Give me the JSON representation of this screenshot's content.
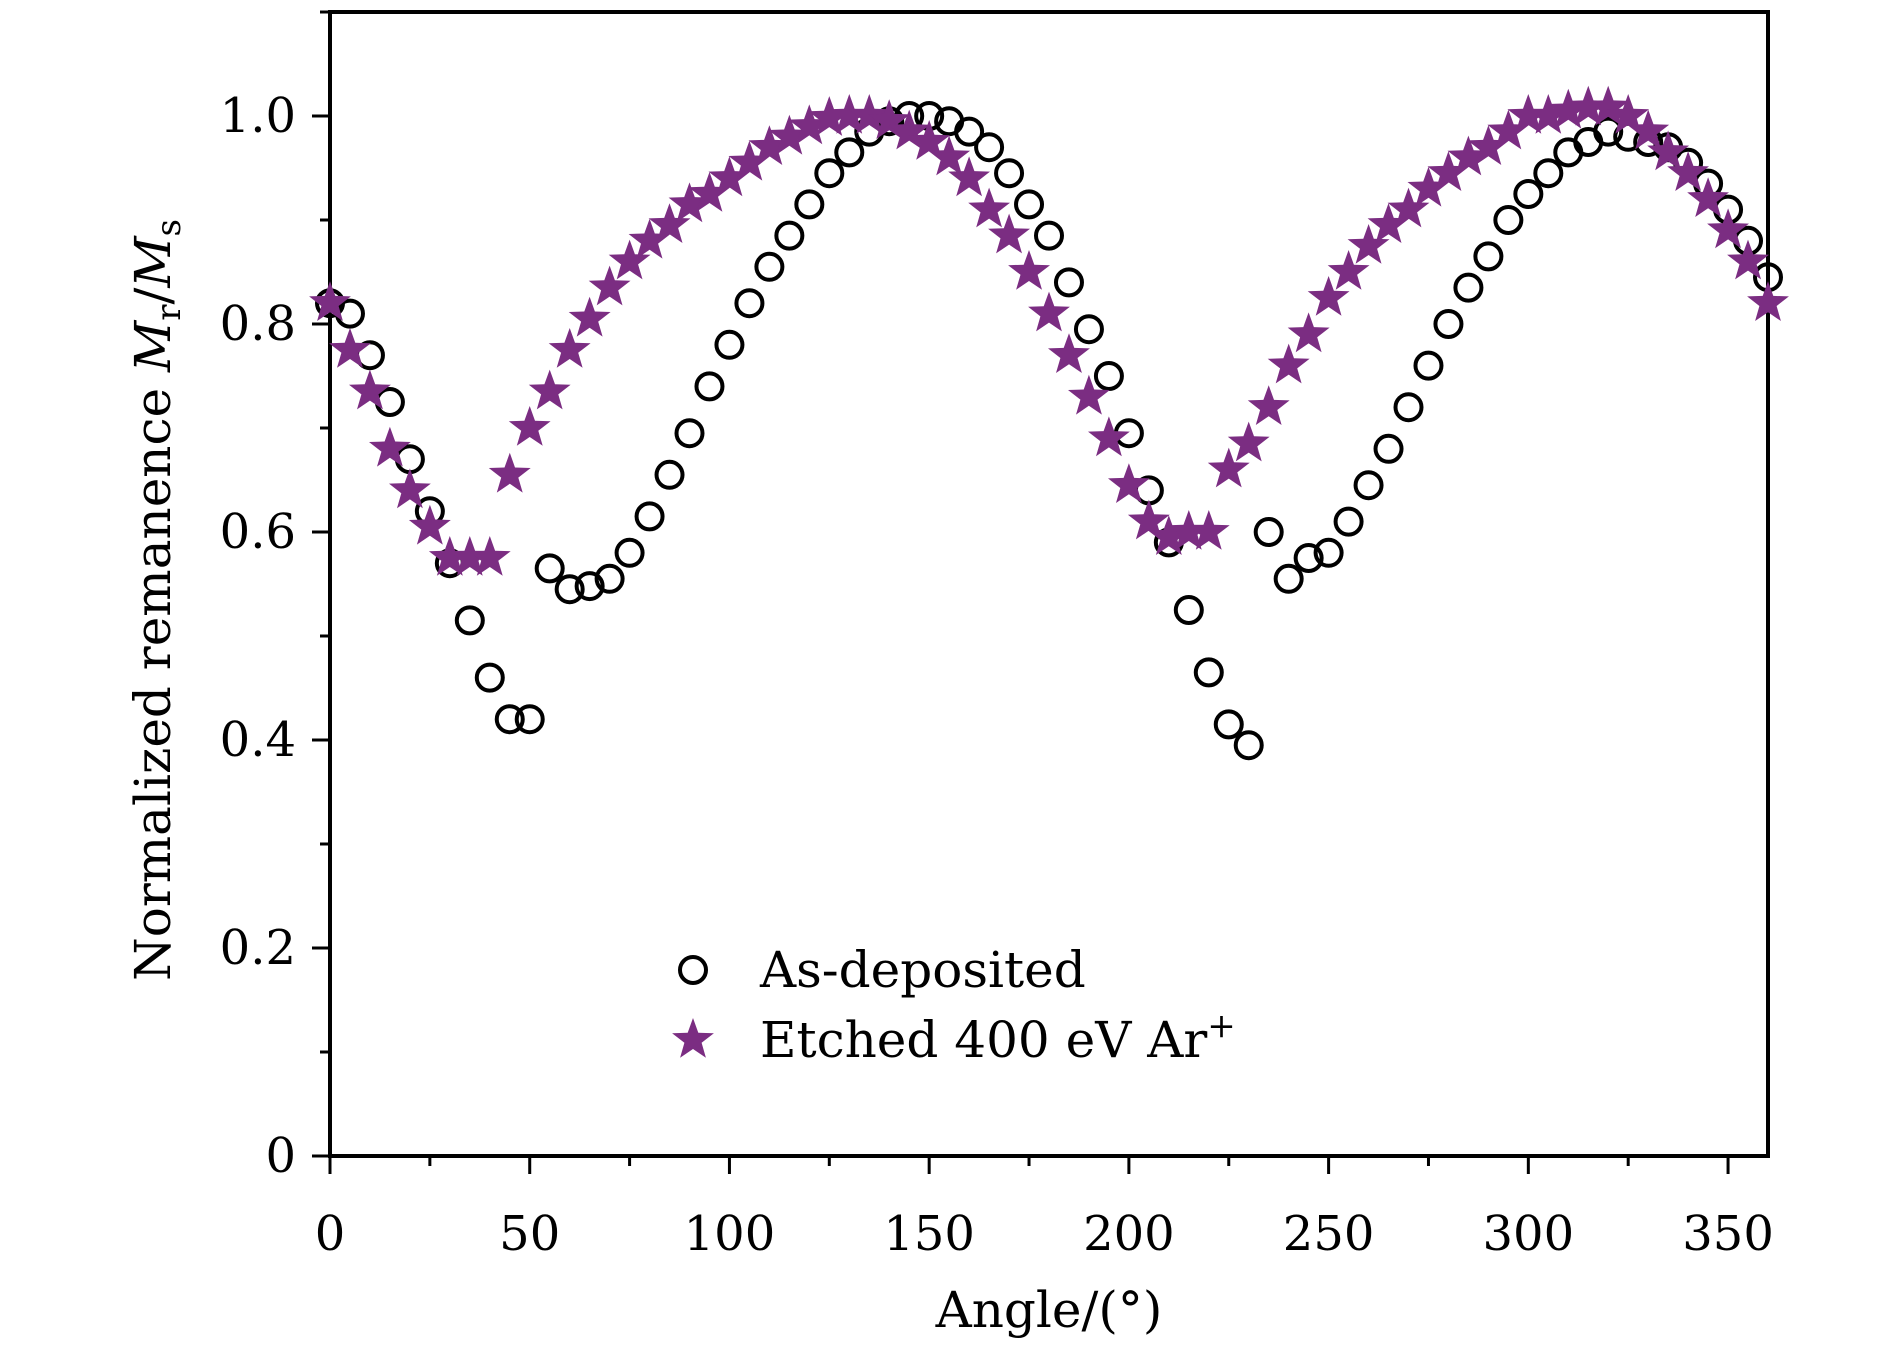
{
  "chart_data": {
    "type": "scatter",
    "title": "",
    "xlabel": "Angle/(°)",
    "ylabel_parts": {
      "main": "Normalized remanence ",
      "m1": "M",
      "sub1": "r",
      "slash": "/",
      "m2": "M",
      "sub2": "s"
    },
    "xlim": [
      0,
      360
    ],
    "ylim": [
      0,
      1.1
    ],
    "xticks": [
      0,
      50,
      100,
      150,
      200,
      250,
      300,
      350
    ],
    "xtick_labels": [
      "0",
      "50",
      "100",
      "150",
      "200",
      "250",
      "300",
      "350"
    ],
    "yticks": [
      0,
      0.2,
      0.4,
      0.6,
      0.8,
      1.0
    ],
    "ytick_labels": [
      "0",
      "0.2",
      "0.4",
      "0.6",
      "0.8",
      "1.0"
    ],
    "grid": false,
    "legend_position": "bottom-center",
    "colors": {
      "as_deposited": "#000000",
      "etched": "#7b2d82"
    },
    "series": [
      {
        "name": "As-deposited",
        "marker": "circle",
        "x": [
          0,
          5,
          10,
          15,
          20,
          25,
          30,
          35,
          40,
          45,
          50,
          55,
          60,
          65,
          70,
          75,
          80,
          85,
          90,
          95,
          100,
          105,
          110,
          115,
          120,
          125,
          130,
          135,
          140,
          145,
          150,
          155,
          160,
          165,
          170,
          175,
          180,
          185,
          190,
          195,
          200,
          205,
          210,
          215,
          220,
          225,
          230,
          235,
          240,
          245,
          250,
          255,
          260,
          265,
          270,
          275,
          280,
          285,
          290,
          295,
          300,
          305,
          310,
          315,
          320,
          325,
          330,
          335,
          340,
          345,
          350,
          355,
          360
        ],
        "y": [
          0.82,
          0.81,
          0.77,
          0.725,
          0.67,
          0.62,
          0.57,
          0.515,
          0.46,
          0.42,
          0.42,
          0.565,
          0.545,
          0.548,
          0.555,
          0.58,
          0.615,
          0.655,
          0.695,
          0.74,
          0.78,
          0.82,
          0.855,
          0.885,
          0.915,
          0.945,
          0.965,
          0.985,
          0.995,
          1.0,
          1.0,
          0.995,
          0.985,
          0.97,
          0.945,
          0.915,
          0.885,
          0.84,
          0.795,
          0.75,
          0.695,
          0.64,
          0.59,
          0.525,
          0.465,
          0.415,
          0.395,
          0.6,
          0.555,
          0.575,
          0.58,
          0.61,
          0.645,
          0.68,
          0.72,
          0.76,
          0.8,
          0.835,
          0.865,
          0.9,
          0.925,
          0.945,
          0.965,
          0.975,
          0.985,
          0.98,
          0.975,
          0.97,
          0.955,
          0.935,
          0.91,
          0.88,
          0.845
        ]
      },
      {
        "name": "Etched 400 eV Ar",
        "name_sup": "+",
        "marker": "star",
        "x": [
          0,
          5,
          10,
          15,
          20,
          25,
          30,
          35,
          40,
          45,
          50,
          55,
          60,
          65,
          70,
          75,
          80,
          85,
          90,
          95,
          100,
          105,
          110,
          115,
          120,
          125,
          130,
          135,
          140,
          145,
          150,
          155,
          160,
          165,
          170,
          175,
          180,
          185,
          190,
          195,
          200,
          205,
          210,
          215,
          220,
          225,
          230,
          235,
          240,
          245,
          250,
          255,
          260,
          265,
          270,
          275,
          280,
          285,
          290,
          295,
          300,
          305,
          310,
          315,
          320,
          325,
          330,
          335,
          340,
          345,
          350,
          355,
          360
        ],
        "y": [
          0.82,
          0.775,
          0.735,
          0.68,
          0.64,
          0.605,
          0.575,
          0.575,
          0.575,
          0.655,
          0.7,
          0.735,
          0.775,
          0.805,
          0.835,
          0.86,
          0.88,
          0.895,
          0.915,
          0.925,
          0.94,
          0.955,
          0.97,
          0.98,
          0.99,
          0.998,
          1.0,
          1.0,
          0.995,
          0.985,
          0.975,
          0.96,
          0.94,
          0.91,
          0.885,
          0.85,
          0.81,
          0.77,
          0.73,
          0.69,
          0.645,
          0.61,
          0.595,
          0.6,
          0.6,
          0.66,
          0.685,
          0.72,
          0.76,
          0.79,
          0.825,
          0.85,
          0.875,
          0.895,
          0.91,
          0.93,
          0.945,
          0.96,
          0.97,
          0.985,
          1.0,
          1.0,
          1.005,
          1.008,
          1.008,
          1.0,
          0.985,
          0.965,
          0.945,
          0.92,
          0.89,
          0.86,
          0.82
        ]
      }
    ],
    "legend": [
      {
        "label": "As-deposited",
        "marker": "circle"
      },
      {
        "label": "Etched 400 eV Ar",
        "sup": "+",
        "marker": "star"
      }
    ]
  }
}
